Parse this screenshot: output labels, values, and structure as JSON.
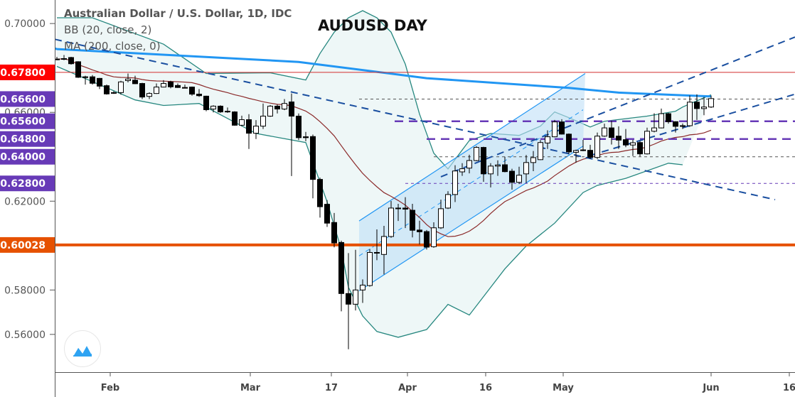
{
  "legend": {
    "symbol": "Australian Dollar / U.S. Dollar, 1D, IDC",
    "bb": "BB (20, close, 2)",
    "ma": "MA (200, close, 0)"
  },
  "chart_data": {
    "type": "candlestick",
    "title": "AUDUSD DAY",
    "ylim": [
      0.543,
      0.7106
    ],
    "y_ticks": [
      {
        "value": 0.7,
        "label": "0.70000"
      },
      {
        "value": 0.66,
        "label": "0.66000"
      },
      {
        "value": 0.62,
        "label": "0.62000"
      },
      {
        "value": 0.58,
        "label": "0.58000"
      },
      {
        "value": 0.56,
        "label": "0.56000"
      }
    ],
    "x_ticks": [
      {
        "index": 7.5,
        "label": "Feb"
      },
      {
        "index": 27.2,
        "label": "Mar"
      },
      {
        "index": 38.6,
        "label": "17"
      },
      {
        "index": 49.3,
        "label": "Apr"
      },
      {
        "index": 60.3,
        "label": "16"
      },
      {
        "index": 71.2,
        "label": "May"
      },
      {
        "index": 92,
        "label": "Jun"
      },
      {
        "index": 103,
        "label": "16"
      }
    ],
    "colors": {
      "up_fill": "#ffffff",
      "down_fill": "#000000",
      "bb_band": "#26877f",
      "bb_fill": "#eef7f7",
      "bb_basis": "#8b2a2a",
      "ma200": "#2196f3",
      "channel": "#2196f3",
      "channel_fill": "#bfe0f7",
      "trend": "#1a4fa0"
    },
    "ohlc": [
      [
        0.684,
        0.685,
        0.6835,
        0.684
      ],
      [
        0.684,
        0.6858,
        0.6835,
        0.6842
      ],
      [
        0.6847,
        0.685,
        0.6815,
        0.6819
      ],
      [
        0.6828,
        0.683,
        0.6755,
        0.6758
      ],
      [
        0.676,
        0.6765,
        0.6725,
        0.6758
      ],
      [
        0.676,
        0.6768,
        0.6725,
        0.6731
      ],
      [
        0.6753,
        0.6755,
        0.6705,
        0.6718
      ],
      [
        0.672,
        0.6725,
        0.668,
        0.6683
      ],
      [
        0.6689,
        0.6695,
        0.6683,
        0.6689
      ],
      [
        0.6689,
        0.6742,
        0.668,
        0.6737
      ],
      [
        0.6743,
        0.6775,
        0.6735,
        0.675
      ],
      [
        0.6745,
        0.6765,
        0.6727,
        0.6729
      ],
      [
        0.673,
        0.6733,
        0.666,
        0.6669
      ],
      [
        0.6672,
        0.669,
        0.666,
        0.6685
      ],
      [
        0.6685,
        0.673,
        0.6683,
        0.6714
      ],
      [
        0.6714,
        0.6745,
        0.6712,
        0.673
      ],
      [
        0.6737,
        0.6742,
        0.6708,
        0.6715
      ],
      [
        0.6721,
        0.673,
        0.671,
        0.6712
      ],
      [
        0.6712,
        0.6725,
        0.6708,
        0.6712
      ],
      [
        0.6714,
        0.6716,
        0.6675,
        0.6682
      ],
      [
        0.6682,
        0.6705,
        0.667,
        0.6675
      ],
      [
        0.6673,
        0.6675,
        0.6605,
        0.6612
      ],
      [
        0.6615,
        0.6632,
        0.66,
        0.6628
      ],
      [
        0.6628,
        0.6632,
        0.6598,
        0.6602
      ],
      [
        0.6605,
        0.6622,
        0.6598,
        0.6605
      ],
      [
        0.6602,
        0.6605,
        0.654,
        0.6542
      ],
      [
        0.6542,
        0.6585,
        0.6538,
        0.6567
      ],
      [
        0.6567,
        0.6592,
        0.6435,
        0.6506
      ],
      [
        0.6506,
        0.6565,
        0.648,
        0.6538
      ],
      [
        0.6538,
        0.664,
        0.6525,
        0.6583
      ],
      [
        0.6583,
        0.6633,
        0.658,
        0.6628
      ],
      [
        0.6628,
        0.6635,
        0.6595,
        0.6615
      ],
      [
        0.6615,
        0.666,
        0.661,
        0.664
      ],
      [
        0.6647,
        0.6685,
        0.6313,
        0.6583
      ],
      [
        0.6583,
        0.6595,
        0.6475,
        0.6486
      ],
      [
        0.649,
        0.6512,
        0.647,
        0.6486
      ],
      [
        0.6491,
        0.65,
        0.6213,
        0.6298
      ],
      [
        0.6298,
        0.6306,
        0.6126,
        0.6175
      ],
      [
        0.6186,
        0.6205,
        0.6084,
        0.6101
      ],
      [
        0.6104,
        0.6147,
        0.5992,
        0.6012
      ],
      [
        0.6014,
        0.6022,
        0.5704,
        0.5784
      ],
      [
        0.5784,
        0.5966,
        0.5533,
        0.5736
      ],
      [
        0.5736,
        0.5981,
        0.5708,
        0.58
      ],
      [
        0.58,
        0.5848,
        0.5742,
        0.5822
      ],
      [
        0.582,
        0.5985,
        0.5815,
        0.5969
      ],
      [
        0.5969,
        0.6073,
        0.5934,
        0.5966
      ],
      [
        0.596,
        0.6089,
        0.587,
        0.6041
      ],
      [
        0.6041,
        0.6201,
        0.6035,
        0.6169
      ],
      [
        0.6169,
        0.6188,
        0.6111,
        0.6169
      ],
      [
        0.6169,
        0.6218,
        0.6079,
        0.6164
      ],
      [
        0.6159,
        0.6188,
        0.6037,
        0.6069
      ],
      [
        0.607,
        0.6112,
        0.6005,
        0.6062
      ],
      [
        0.6063,
        0.607,
        0.5982,
        0.5993
      ],
      [
        0.5995,
        0.6105,
        0.599,
        0.608
      ],
      [
        0.608,
        0.6207,
        0.6075,
        0.6166
      ],
      [
        0.6169,
        0.6245,
        0.6165,
        0.623
      ],
      [
        0.623,
        0.6362,
        0.6196,
        0.6336
      ],
      [
        0.6332,
        0.6371,
        0.6314,
        0.6346
      ],
      [
        0.6349,
        0.6409,
        0.6325,
        0.6383
      ],
      [
        0.6383,
        0.6448,
        0.638,
        0.6442
      ],
      [
        0.6442,
        0.6445,
        0.6287,
        0.6323
      ],
      [
        0.6323,
        0.6371,
        0.6262,
        0.6358
      ],
      [
        0.6358,
        0.6384,
        0.6314,
        0.6363
      ],
      [
        0.6364,
        0.64,
        0.633,
        0.6333
      ],
      [
        0.6335,
        0.6346,
        0.6252,
        0.6285
      ],
      [
        0.6285,
        0.6355,
        0.6277,
        0.6317
      ],
      [
        0.6323,
        0.6408,
        0.6282,
        0.6374
      ],
      [
        0.6374,
        0.6426,
        0.6335,
        0.6396
      ],
      [
        0.6387,
        0.6475,
        0.6385,
        0.6464
      ],
      [
        0.6462,
        0.6519,
        0.6435,
        0.649
      ],
      [
        0.649,
        0.6566,
        0.6488,
        0.6557
      ],
      [
        0.6557,
        0.6569,
        0.65,
        0.6502
      ],
      [
        0.6502,
        0.6505,
        0.6411,
        0.6422
      ],
      [
        0.642,
        0.6432,
        0.6373,
        0.6428
      ],
      [
        0.6431,
        0.6476,
        0.6425,
        0.6431
      ],
      [
        0.6429,
        0.6454,
        0.639,
        0.6397
      ],
      [
        0.6397,
        0.6509,
        0.639,
        0.6493
      ],
      [
        0.6493,
        0.6549,
        0.649,
        0.653
      ],
      [
        0.653,
        0.6562,
        0.6455,
        0.6487
      ],
      [
        0.6493,
        0.6537,
        0.6435,
        0.6475
      ],
      [
        0.6477,
        0.6525,
        0.6443,
        0.6453
      ],
      [
        0.6453,
        0.6476,
        0.6403,
        0.6463
      ],
      [
        0.6464,
        0.647,
        0.6402,
        0.6413
      ],
      [
        0.6413,
        0.6531,
        0.641,
        0.6515
      ],
      [
        0.6515,
        0.6596,
        0.651,
        0.653
      ],
      [
        0.653,
        0.6617,
        0.6528,
        0.6594
      ],
      [
        0.6594,
        0.6598,
        0.6549,
        0.6558
      ],
      [
        0.6558,
        0.656,
        0.6509,
        0.6537
      ],
      [
        0.654,
        0.655,
        0.6525,
        0.654
      ],
      [
        0.654,
        0.6676,
        0.6535,
        0.6646
      ],
      [
        0.6646,
        0.6681,
        0.6566,
        0.6617
      ],
      [
        0.6617,
        0.6669,
        0.6587,
        0.6624
      ],
      [
        0.6624,
        0.6676,
        0.662,
        0.6662
      ]
    ],
    "bb_upper": [
      [
        0,
        0.7026
      ],
      [
        5,
        0.7026
      ],
      [
        15,
        0.6907
      ],
      [
        21,
        0.6775
      ],
      [
        30,
        0.6778
      ],
      [
        35,
        0.6746
      ],
      [
        37,
        0.6865
      ],
      [
        39,
        0.6961
      ],
      [
        41,
        0.7026
      ],
      [
        43,
        0.7058
      ],
      [
        45,
        0.7026
      ],
      [
        47,
        0.6961
      ],
      [
        49,
        0.6817
      ],
      [
        51,
        0.6592
      ],
      [
        53,
        0.6416
      ],
      [
        55,
        0.6345
      ],
      [
        58,
        0.6473
      ],
      [
        61,
        0.6505
      ],
      [
        65,
        0.6496
      ],
      [
        68,
        0.6538
      ],
      [
        70,
        0.6602
      ],
      [
        72,
        0.6576
      ],
      [
        75,
        0.6534
      ],
      [
        77,
        0.656
      ],
      [
        83,
        0.6583
      ],
      [
        87,
        0.6605
      ],
      [
        88,
        0.6624
      ],
      [
        91,
        0.6666
      ],
      [
        92,
        0.6679
      ]
    ],
    "bb_lower": [
      [
        0,
        0.6807
      ],
      [
        11,
        0.6656
      ],
      [
        15,
        0.6631
      ],
      [
        20,
        0.664
      ],
      [
        28,
        0.6505
      ],
      [
        35,
        0.6464
      ],
      [
        38,
        0.6197
      ],
      [
        40,
        0.5982
      ],
      [
        41,
        0.5812
      ],
      [
        43,
        0.5683
      ],
      [
        45,
        0.5613
      ],
      [
        48,
        0.5587
      ],
      [
        52,
        0.5622
      ],
      [
        55,
        0.5735
      ],
      [
        58,
        0.5687
      ],
      [
        63,
        0.5895
      ],
      [
        66,
        0.5998
      ],
      [
        70,
        0.6101
      ],
      [
        74,
        0.6239
      ],
      [
        76,
        0.6271
      ],
      [
        80,
        0.6303
      ],
      [
        86,
        0.6371
      ],
      [
        88,
        0.6364
      ]
    ],
    "ma200": [
      [
        -0.3,
        0.6888
      ],
      [
        0,
        0.6885
      ],
      [
        34,
        0.6827
      ],
      [
        52,
        0.6754
      ],
      [
        72,
        0.671
      ],
      [
        79,
        0.6689
      ],
      [
        91,
        0.6673
      ],
      [
        92,
        0.6672
      ]
    ],
    "channel": {
      "lower": [
        [
          42.5,
          0.5796
        ],
        [
          74,
          0.6448
        ]
      ],
      "upper": [
        [
          42.5,
          0.6111
        ],
        [
          74.3,
          0.6775
        ]
      ]
    },
    "trendlines": [
      [
        [
          -0.3,
          0.6929
        ],
        [
          101,
          0.6207
        ]
      ],
      [
        [
          54,
          0.631
        ],
        [
          103.8,
          0.6939
        ]
      ],
      [
        [
          75,
          0.6406
        ],
        [
          103.8,
          0.6682
        ]
      ]
    ],
    "levels": [
      {
        "price": 0.678,
        "label": "0.67800",
        "badge": "#ff0000",
        "line": "#d32f2f",
        "style": "solid",
        "width": 1,
        "start": null
      },
      {
        "price": 0.666,
        "label": "0.66600",
        "badge": "#673ab7",
        "line": "#555555",
        "style": "dashed",
        "width": 1,
        "start": 42.5
      },
      {
        "price": 0.656,
        "label": "0.65600",
        "badge": "#673ab7",
        "line": "#673ab7",
        "style": "dashed",
        "width": 2.5,
        "start": 47.5
      },
      {
        "price": 0.648,
        "label": "0.64800",
        "badge": "#673ab7",
        "line": "#673ab7",
        "style": "dashed",
        "width": 2.5,
        "start": 52
      },
      {
        "price": 0.64,
        "label": "0.64000",
        "badge": "#673ab7",
        "line": "#555555",
        "style": "dashed",
        "width": 1,
        "start": 53
      },
      {
        "price": 0.628,
        "label": "0.62800",
        "badge": "#673ab7",
        "line": "#673ab7",
        "style": "dashed",
        "width": 1,
        "start": 49
      },
      {
        "price": 0.60028,
        "label": "0.60028",
        "badge": "#e65100",
        "line": "#e65100",
        "style": "solid",
        "width": 4,
        "start": null
      }
    ]
  }
}
